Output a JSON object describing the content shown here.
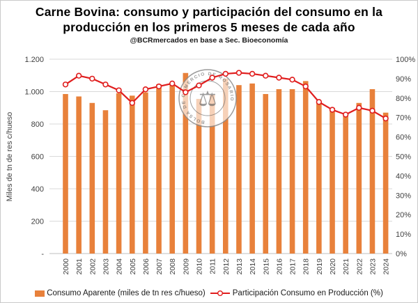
{
  "header": {
    "title_line1": "Carne Bovina: consumo y participación del consumo en la",
    "title_line2": "producción en los primeros 5 meses de cada año",
    "subtitle": "@BCRmercados en base a Sec. Bioeconomía"
  },
  "colors": {
    "bar": "#E8813B",
    "line": "#E01D1D",
    "marker_fill": "#FFFFFF",
    "grid": "#D9D9D9",
    "axis_line": "#BFBFBF",
    "axis_text": "#404040",
    "watermark": "#8A8A8A"
  },
  "watermark": {
    "ring_text": "BOLSA DE COMERCIO DE ROSARIO",
    "symbol": "⚖"
  },
  "chart_data": {
    "type": "combo-bar-line",
    "categories": [
      "2000",
      "2001",
      "2002",
      "2003",
      "2004",
      "2005",
      "2006",
      "2007",
      "2008",
      "2009",
      "2010",
      "2011",
      "2012",
      "2013",
      "2014",
      "2015",
      "2016",
      "2017",
      "2018",
      "2019",
      "2020",
      "2021",
      "2022",
      "2023",
      "2024"
    ],
    "series": [
      {
        "name": "Consumo Aparente (miles de tn res c/hueso)",
        "type": "bar",
        "axis": "left",
        "values": [
          985,
          970,
          930,
          885,
          990,
          975,
          995,
          1045,
          1055,
          1115,
          955,
          980,
          1080,
          1040,
          1050,
          985,
          1015,
          1015,
          1065,
          940,
          900,
          855,
          930,
          1015,
          870
        ]
      },
      {
        "name": "Participación Consumo en Producción (%)",
        "type": "line",
        "axis": "right",
        "values": [
          87,
          91.5,
          90,
          87,
          84,
          77.5,
          84.5,
          86,
          87.5,
          83,
          86.5,
          90.5,
          92.5,
          93,
          92.5,
          91.5,
          90.5,
          89.5,
          86,
          78,
          74,
          71.5,
          75,
          73.5,
          69.5
        ]
      }
    ],
    "left_axis": {
      "label": "Miles de tn de res c/hueso",
      "min": 0,
      "max": 1200,
      "step": 200,
      "tick_labels": [
        "-",
        "200",
        "400",
        "600",
        "800",
        "1.000",
        "1.200"
      ]
    },
    "right_axis": {
      "min": 0,
      "max": 100,
      "step": 10,
      "tick_labels": [
        "0%",
        "10%",
        "20%",
        "30%",
        "40%",
        "50%",
        "60%",
        "70%",
        "80%",
        "90%",
        "100%"
      ]
    },
    "grid": true,
    "legend_position": "bottom"
  }
}
